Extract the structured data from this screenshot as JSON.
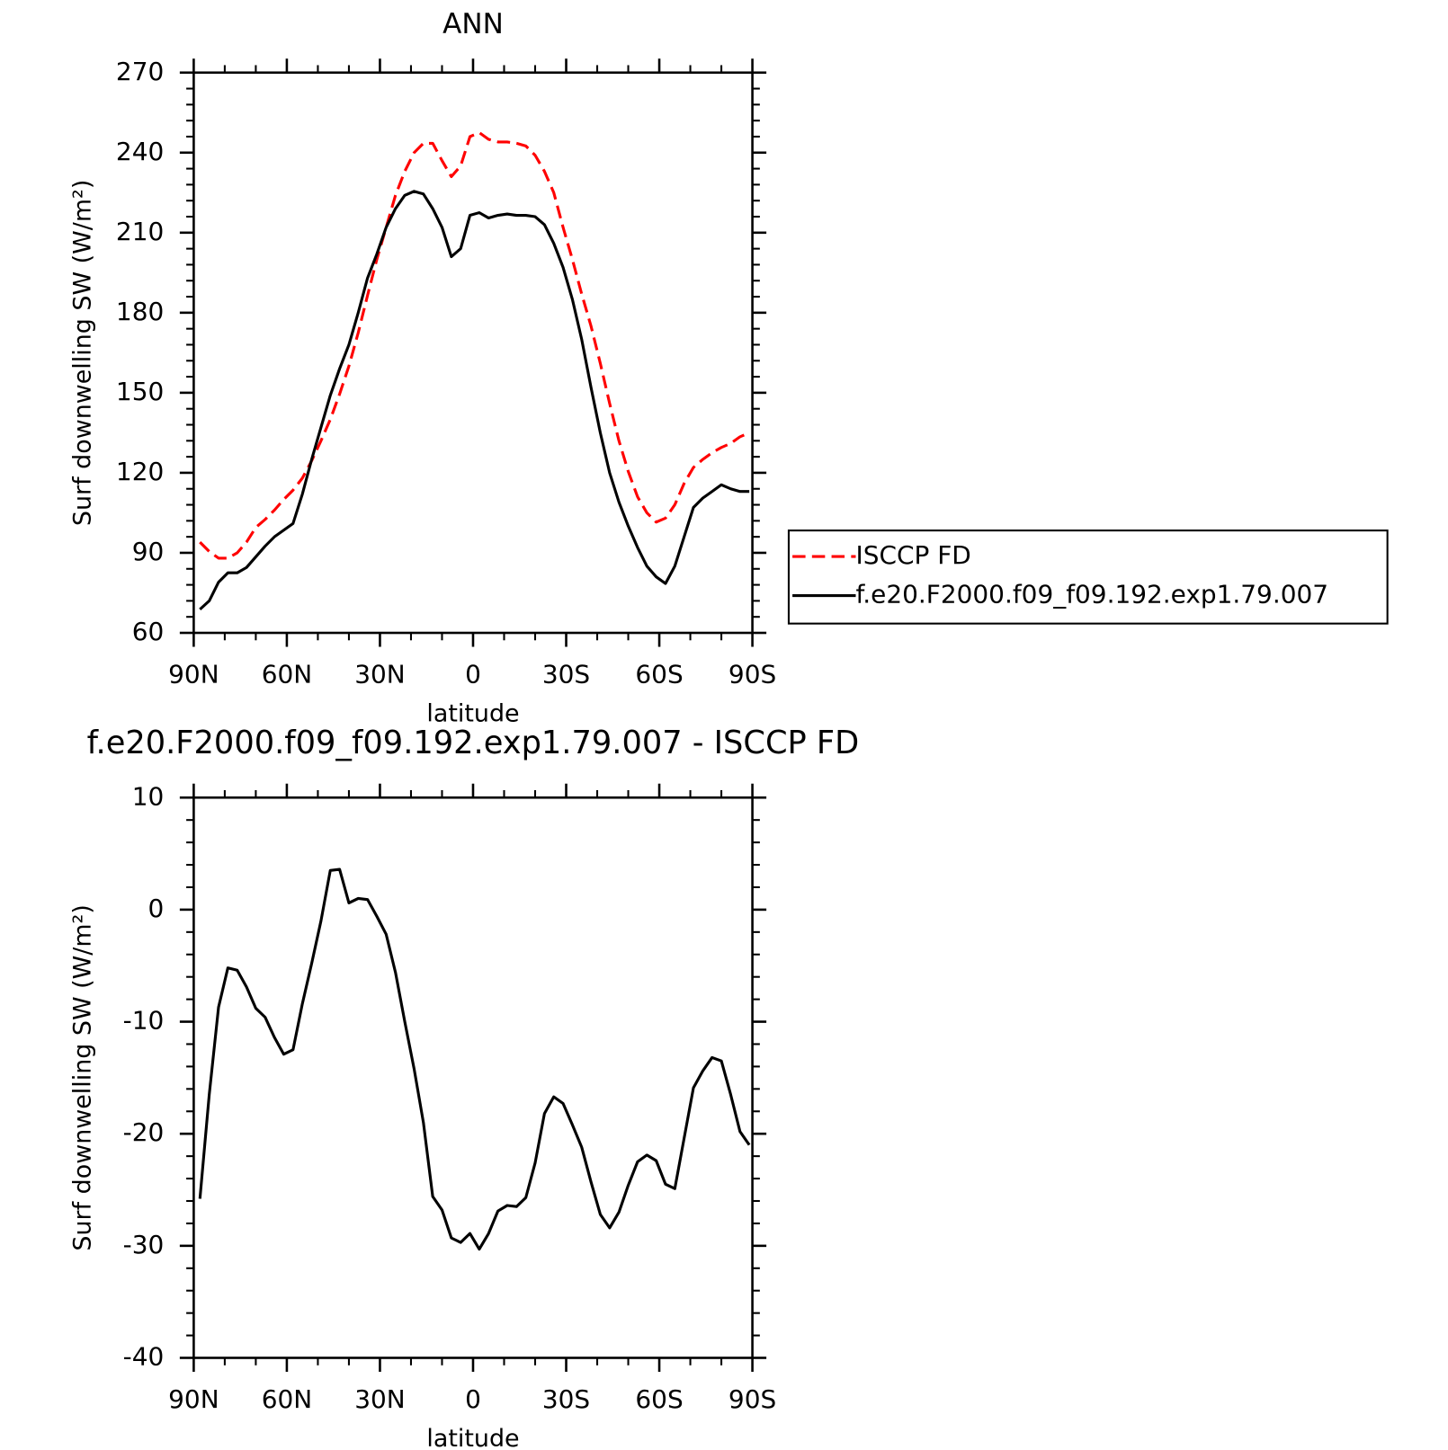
{
  "chart_data": [
    {
      "type": "line",
      "title": "ANN",
      "xlabel": "latitude",
      "ylabel": "Surf downwelling SW (W/m²)",
      "x": [
        88,
        85,
        82,
        79,
        76,
        73,
        70,
        67,
        64,
        61,
        58,
        55,
        52,
        49,
        46,
        43,
        40,
        37,
        34,
        31,
        28,
        25,
        22,
        19,
        16,
        13,
        10,
        7,
        4,
        1,
        -2,
        -5,
        -8,
        -11,
        -14,
        -17,
        -20,
        -23,
        -26,
        -29,
        -32,
        -35,
        -38,
        -41,
        -44,
        -47,
        -50,
        -53,
        -56,
        -59,
        -62,
        -65,
        -68,
        -71,
        -74,
        -77,
        -80,
        -83,
        -86,
        -89
      ],
      "xlim": [
        90,
        -90
      ],
      "xticks": [
        {
          "value": 90,
          "label": "90N"
        },
        {
          "value": 60,
          "label": "60N"
        },
        {
          "value": 30,
          "label": "30N"
        },
        0,
        {
          "value": -30,
          "label": "30S"
        },
        {
          "value": -60,
          "label": "60S"
        },
        {
          "value": -90,
          "label": "90S"
        }
      ],
      "ylim": [
        60,
        270
      ],
      "yticks": [
        60,
        90,
        120,
        150,
        180,
        210,
        240,
        270
      ],
      "legend": "right",
      "series": [
        {
          "name": "ISCCP FD",
          "color": "#ff0000",
          "style": "dashed",
          "values": [
            94,
            90.5,
            88,
            88,
            90,
            94,
            99.5,
            102.5,
            106,
            110,
            113.5,
            118,
            124.5,
            132,
            140,
            149.5,
            160,
            172.5,
            186.5,
            200,
            212,
            224,
            233,
            240,
            243.5,
            243.5,
            237,
            231,
            235,
            246,
            247.5,
            245,
            244,
            244,
            243.5,
            242.5,
            239,
            233,
            225,
            212,
            200,
            187,
            175,
            161,
            146,
            132,
            120.5,
            111,
            105,
            101.5,
            103,
            108,
            116,
            122,
            125,
            127.5,
            129.5,
            131,
            133.5,
            135
          ]
        },
        {
          "name": "f.e20.F2000.f09_f09.192.exp1.79.007",
          "color": "#000000",
          "style": "solid",
          "values": [
            68.8,
            72,
            79,
            82.5,
            82.5,
            84.5,
            88.5,
            92.5,
            96,
            98.5,
            101,
            112,
            125,
            137,
            149,
            159,
            168,
            180,
            193,
            202,
            212,
            219,
            224,
            225.5,
            224.5,
            219,
            212,
            201,
            204,
            216.5,
            217.5,
            215.5,
            216.5,
            217,
            216.5,
            216.5,
            216,
            213,
            206,
            197,
            185,
            170,
            152,
            135,
            120,
            109,
            100,
            92,
            85,
            81,
            78.5,
            85,
            96,
            107,
            110.5,
            113,
            115.5,
            114,
            113,
            113
          ]
        }
      ]
    },
    {
      "type": "line",
      "title": "f.e20.F2000.f09_f09.192.exp1.79.007 - ISCCP FD",
      "xlabel": "latitude",
      "ylabel": "Surf downwelling SW (W/m²)",
      "x": [
        88,
        85,
        82,
        79,
        76,
        73,
        70,
        67,
        64,
        61,
        58,
        55,
        52,
        49,
        46,
        43,
        40,
        37,
        34,
        31,
        28,
        25,
        22,
        19,
        16,
        13,
        10,
        7,
        4,
        1,
        -2,
        -5,
        -8,
        -11,
        -14,
        -17,
        -20,
        -23,
        -26,
        -29,
        -32,
        -35,
        -38,
        -41,
        -44,
        -47,
        -50,
        -53,
        -56,
        -59,
        -62,
        -65,
        -68,
        -71,
        -74,
        -77,
        -80,
        -83,
        -86,
        -89
      ],
      "xlim": [
        90,
        -90
      ],
      "xticks": [
        {
          "value": 90,
          "label": "90N"
        },
        {
          "value": 60,
          "label": "60N"
        },
        {
          "value": 30,
          "label": "30N"
        },
        0,
        {
          "value": -30,
          "label": "30S"
        },
        {
          "value": -60,
          "label": "60S"
        },
        {
          "value": -90,
          "label": "90S"
        }
      ],
      "ylim": [
        -40,
        10
      ],
      "yticks": [
        -40,
        -30,
        -20,
        -10,
        0,
        10
      ],
      "series": [
        {
          "color": "#000000",
          "style": "solid",
          "values": [
            -25.8,
            -16.5,
            -8.7,
            -5.2,
            -5.4,
            -6.9,
            -8.8,
            -9.6,
            -11.4,
            -12.9,
            -12.5,
            -8.4,
            -4.8,
            -1,
            3.5,
            3.6,
            0.6,
            1,
            0.9,
            -0.6,
            -2.2,
            -5.6,
            -10,
            -14.2,
            -19,
            -25.6,
            -26.8,
            -29.3,
            -29.7,
            -28.9,
            -30.3,
            -28.9,
            -26.9,
            -26.4,
            -26.5,
            -25.7,
            -22.6,
            -18.2,
            -16.7,
            -17.3,
            -19.2,
            -21.2,
            -24.3,
            -27.2,
            -28.4,
            -27,
            -24.6,
            -22.5,
            -21.9,
            -22.4,
            -24.5,
            -24.9,
            -20.4,
            -15.9,
            -14.4,
            -13.2,
            -13.5,
            -16.5,
            -19.8,
            -21
          ]
        }
      ]
    }
  ]
}
